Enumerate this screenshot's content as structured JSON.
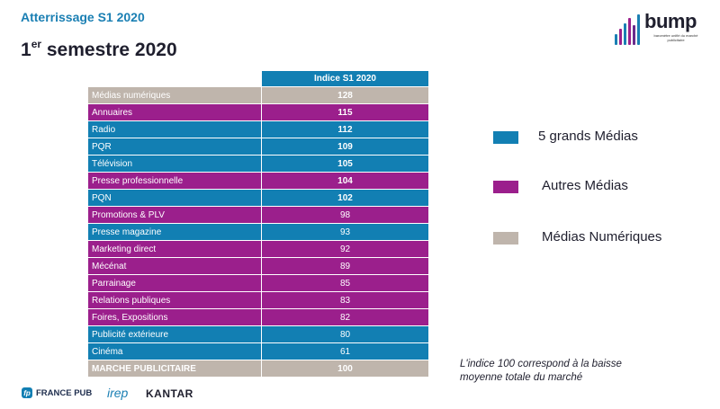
{
  "header": {
    "subtitle": "Atterrissage S1 2020",
    "title_prefix": "1",
    "title_sup": "er",
    "title_rest": " semestre 2020"
  },
  "logo": {
    "word": "bump",
    "tagline": "baromètre unifié du marché publicitaire",
    "bar_colors": [
      "#1a7fb3",
      "#9b1f8c",
      "#1a7fb3",
      "#9b1f8c",
      "#6a2c8c",
      "#1a7fb3"
    ]
  },
  "colors": {
    "grands_medias": "#127fb3",
    "autres_medias": "#9b1f8c",
    "medias_numeriques": "#bfb5ac"
  },
  "legend": [
    {
      "label": "5 grands Médias",
      "color": "#127fb3"
    },
    {
      "label": "Autres Médias",
      "color": "#9b1f8c"
    },
    {
      "label": "Médias Numériques",
      "color": "#bfb5ac"
    }
  ],
  "note": [
    "L'indice 100 correspond à la baisse",
    "moyenne totale du marché"
  ],
  "footer": {
    "france_pub": "FRANCE PUB",
    "irep": "irep",
    "kantar": "KANTAR"
  },
  "chart_data": {
    "type": "table",
    "column_header": "Indice S1 2020",
    "rows": [
      {
        "name": "Médias numériques",
        "value": 128,
        "group": "numeriques",
        "bold": true
      },
      {
        "name": "Annuaires",
        "value": 115,
        "group": "autres",
        "bold": true
      },
      {
        "name": "Radio",
        "value": 112,
        "group": "grands",
        "bold": true
      },
      {
        "name": "PQR",
        "value": 109,
        "group": "grands",
        "bold": true
      },
      {
        "name": "Télévision",
        "value": 105,
        "group": "grands",
        "bold": true
      },
      {
        "name": "Presse professionnelle",
        "value": 104,
        "group": "autres",
        "bold": true
      },
      {
        "name": "PQN",
        "value": 102,
        "group": "grands",
        "bold": true
      },
      {
        "name": "Promotions & PLV",
        "value": 98,
        "group": "autres",
        "bold": false
      },
      {
        "name": "Presse magazine",
        "value": 93,
        "group": "grands",
        "bold": false
      },
      {
        "name": "Marketing direct",
        "value": 92,
        "group": "autres",
        "bold": false
      },
      {
        "name": "Mécénat",
        "value": 89,
        "group": "autres",
        "bold": false
      },
      {
        "name": "Parrainage",
        "value": 85,
        "group": "autres",
        "bold": false
      },
      {
        "name": "Relations publiques",
        "value": 83,
        "group": "autres",
        "bold": false
      },
      {
        "name": "Foires, Expositions",
        "value": 82,
        "group": "autres",
        "bold": false
      },
      {
        "name": "Publicité extérieure",
        "value": 80,
        "group": "grands",
        "bold": false
      },
      {
        "name": "Cinéma",
        "value": 61,
        "group": "grands",
        "bold": false
      },
      {
        "name": "MARCHE PUBLICITAIRE",
        "value": 100,
        "group": "total",
        "bold": true
      }
    ]
  }
}
